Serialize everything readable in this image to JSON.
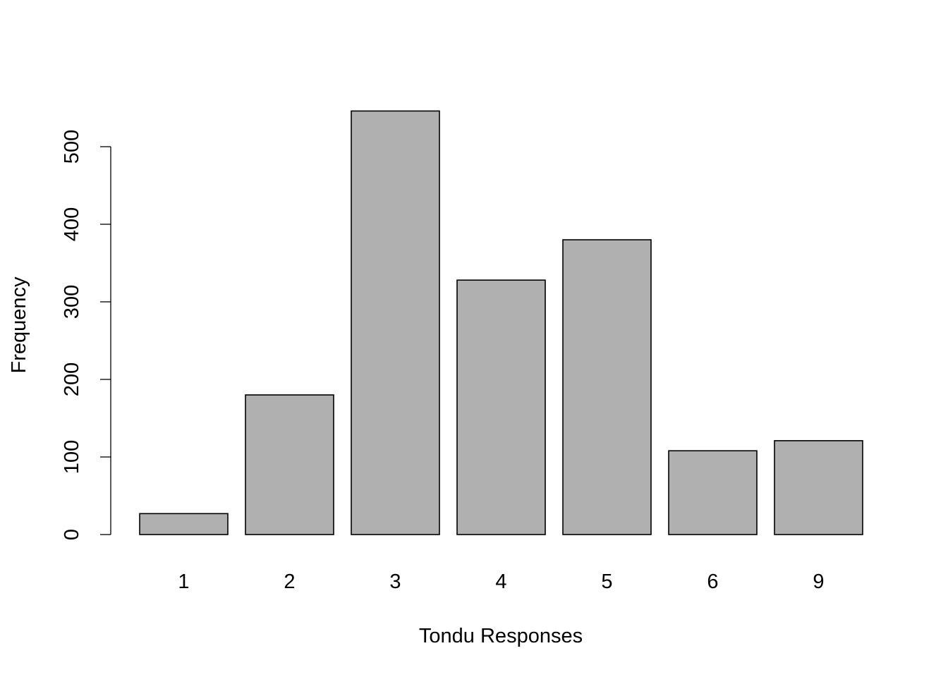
{
  "chart_data": {
    "type": "bar",
    "title": "",
    "xlabel": "Tondu Responses",
    "ylabel": "Frequency",
    "categories": [
      "1",
      "2",
      "3",
      "4",
      "5",
      "6",
      "9"
    ],
    "values": [
      27,
      180,
      546,
      328,
      380,
      108,
      121
    ],
    "ylim": [
      0,
      546
    ],
    "yticks": [
      0,
      100,
      200,
      300,
      400,
      500
    ],
    "ytick_labels": [
      "0",
      "100",
      "200",
      "300",
      "400",
      "500"
    ],
    "bar_color": "#b0b0b0",
    "bar_border_color": "#000000",
    "grid": false,
    "legend": "none"
  }
}
